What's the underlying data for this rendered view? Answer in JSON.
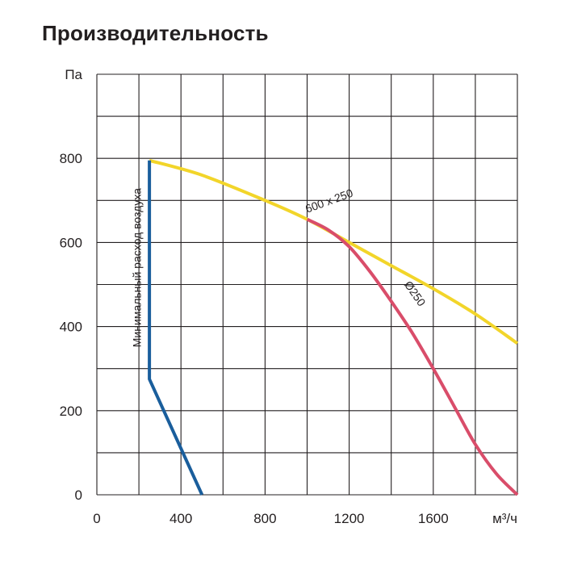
{
  "chart_data": {
    "type": "line",
    "title": "Производительность",
    "ylabel": "Па",
    "xlabel": "м³/ч",
    "xlim": [
      0,
      2000
    ],
    "ylim": [
      0,
      1000
    ],
    "x_ticks": [
      "0",
      "400",
      "800",
      "1200",
      "1600"
    ],
    "y_ticks": [
      "0",
      "200",
      "400",
      "600",
      "800"
    ],
    "grid": true,
    "colors": {
      "grid": "#231f20",
      "yellow": "#f2d52a",
      "red": "#d94d6a",
      "blue": "#1a5e9c"
    },
    "series": [
      {
        "name": "600 x 250",
        "color": "#f2d52a",
        "x": [
          250,
          500,
          800,
          1000,
          1200,
          1400,
          1600,
          1800,
          2000
        ],
        "y": [
          795,
          760,
          700,
          655,
          600,
          545,
          490,
          430,
          360
        ]
      },
      {
        "name": "Ø250",
        "color": "#d94d6a",
        "x": [
          1000,
          1100,
          1200,
          1300,
          1400,
          1500,
          1600,
          1700,
          1800,
          1900,
          2000
        ],
        "y": [
          655,
          630,
          590,
          530,
          460,
          385,
          300,
          210,
          120,
          50,
          0
        ]
      },
      {
        "name": "Минимальный расход воздуха",
        "color": "#1a5e9c",
        "x": [
          250,
          250,
          500
        ],
        "y": [
          795,
          275,
          0
        ]
      }
    ],
    "annotations": [
      {
        "text": "600 x 250",
        "x": 1000,
        "y": 670,
        "angle": -20
      },
      {
        "text": "Ø250",
        "x": 1460,
        "y": 500,
        "angle": 55
      },
      {
        "text": "Минимальный расход воздуха",
        "x": 210,
        "y": 540,
        "angle": -90
      }
    ]
  }
}
